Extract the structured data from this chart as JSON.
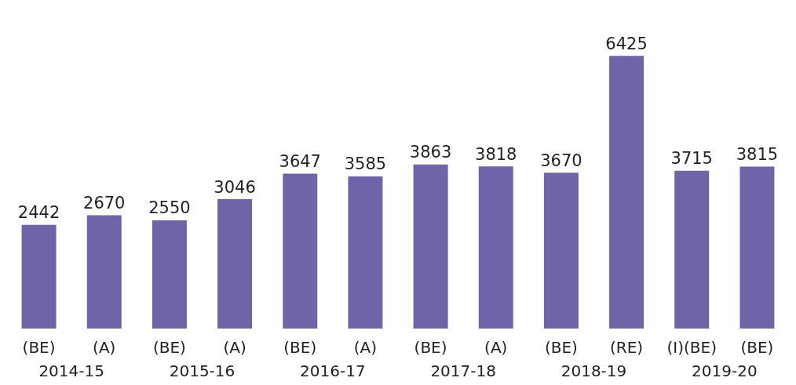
{
  "chart_data": {
    "type": "bar",
    "categories": [
      "(BE)",
      "(A)",
      "(BE)",
      "(A)",
      "(BE)",
      "(A)",
      "(BE)",
      "(A)",
      "(BE)",
      "(RE)",
      "(I)(BE)",
      "(BE)"
    ],
    "values": [
      2442,
      2670,
      2550,
      3046,
      3647,
      3585,
      3863,
      3818,
      3670,
      6425,
      3715,
      3815
    ],
    "color": "#6f64a8",
    "data_labels": true,
    "annotations": [
      "2014-15",
      "2015-16",
      "2016-17",
      "2017-18",
      "2018-19",
      "2019-20"
    ]
  }
}
